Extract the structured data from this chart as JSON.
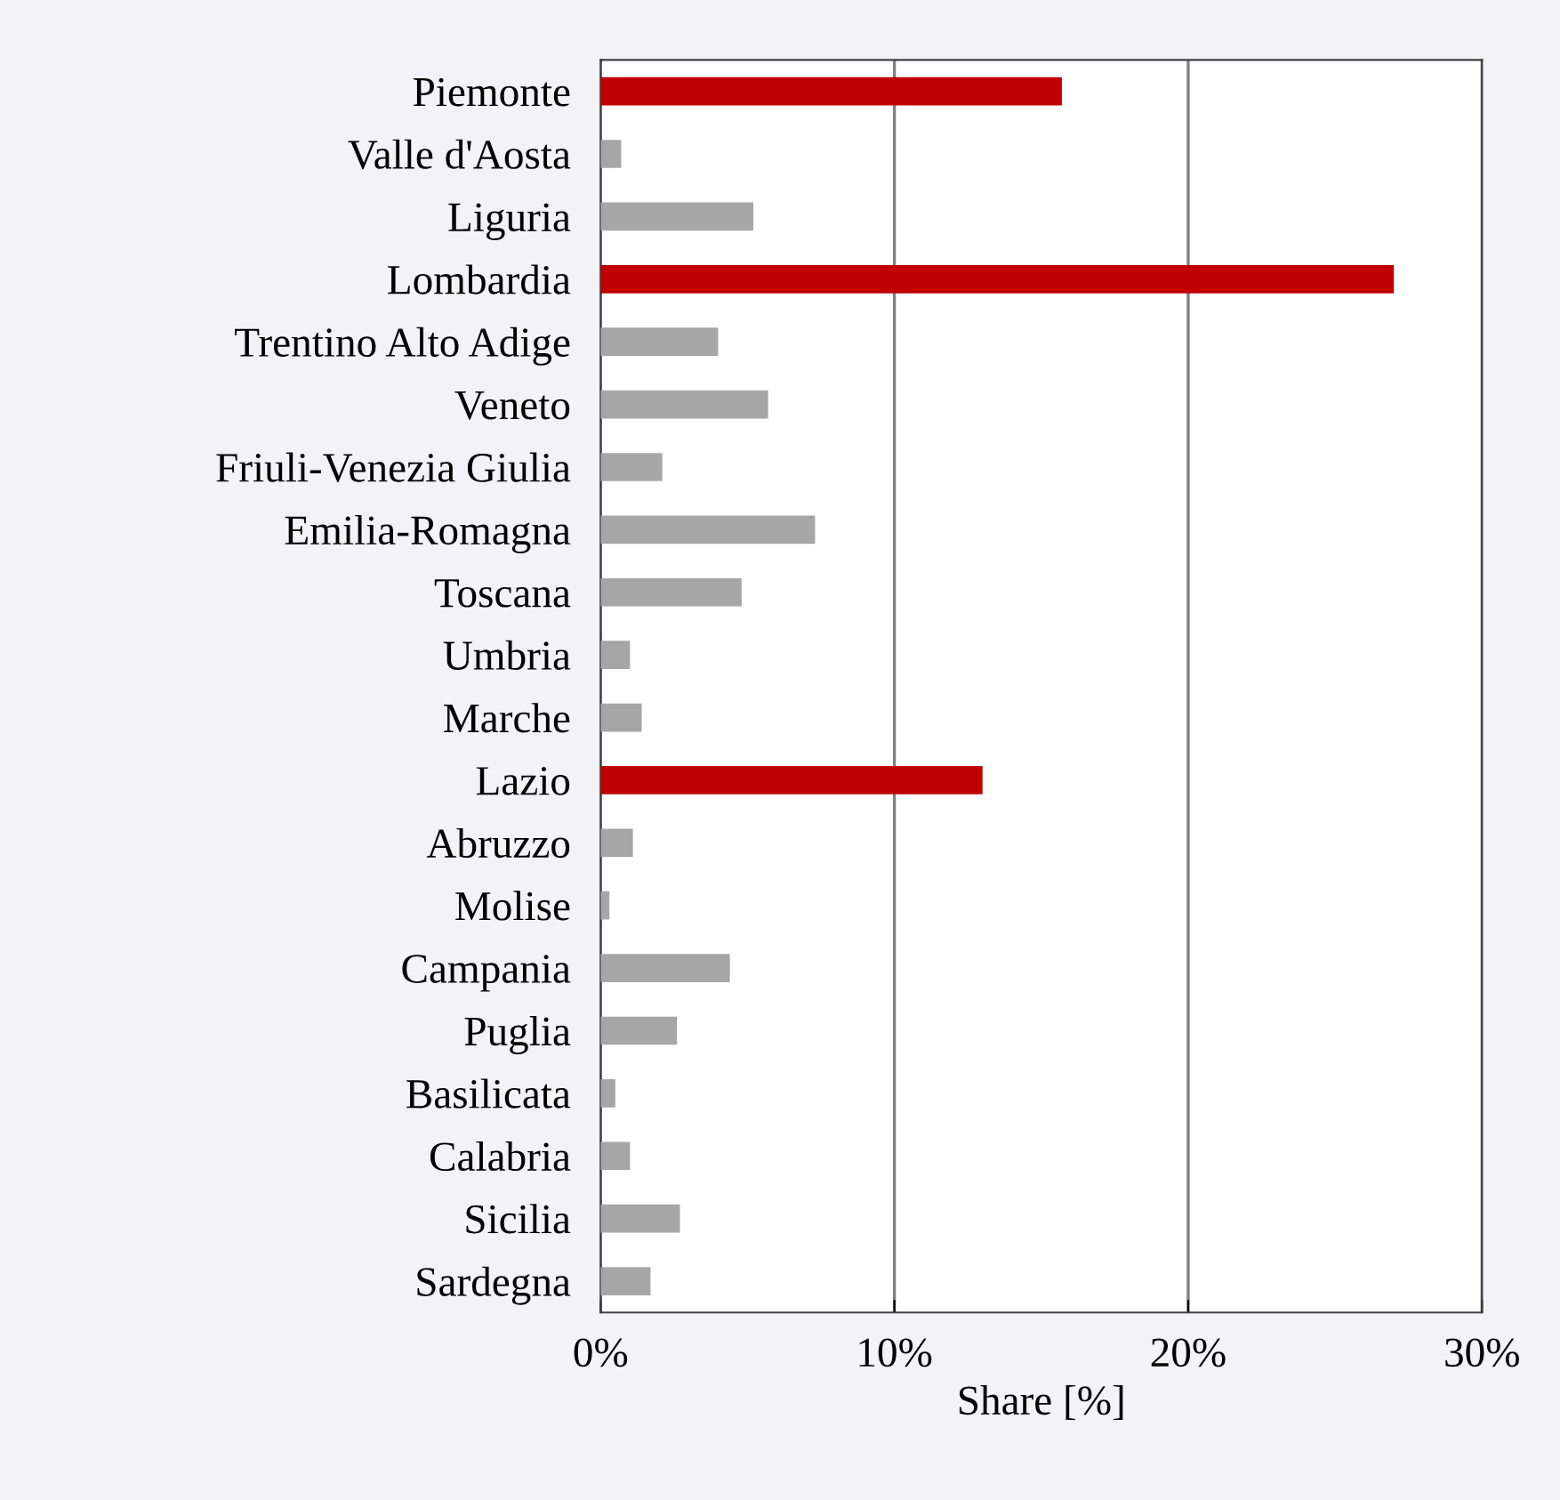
{
  "chart_data": {
    "type": "bar",
    "orientation": "horizontal",
    "xlabel": "Share [%]",
    "categories": [
      "Piemonte",
      "Valle d'Aosta",
      "Liguria",
      "Lombardia",
      "Trentino Alto Adige",
      "Veneto",
      "Friuli-Venezia Giulia",
      "Emilia-Romagna",
      "Toscana",
      "Umbria",
      "Marche",
      "Lazio",
      "Abruzzo",
      "Molise",
      "Campania",
      "Puglia",
      "Basilicata",
      "Calabria",
      "Sicilia",
      "Sardegna"
    ],
    "values": [
      15.7,
      0.7,
      5.2,
      27.0,
      4.0,
      5.7,
      2.1,
      7.3,
      4.8,
      1.0,
      1.4,
      13.0,
      1.1,
      0.3,
      4.4,
      2.6,
      0.5,
      1.0,
      2.7,
      1.7
    ],
    "colors": [
      "#c00000",
      "#a6a6a6",
      "#a6a6a6",
      "#c00000",
      "#a6a6a6",
      "#a6a6a6",
      "#a6a6a6",
      "#a6a6a6",
      "#a6a6a6",
      "#a6a6a6",
      "#a6a6a6",
      "#c00000",
      "#a6a6a6",
      "#a6a6a6",
      "#a6a6a6",
      "#a6a6a6",
      "#a6a6a6",
      "#a6a6a6",
      "#a6a6a6",
      "#a6a6a6"
    ],
    "xlim": [
      0,
      30
    ],
    "xticks": [
      {
        "value": 0,
        "label": "0%"
      },
      {
        "value": 10,
        "label": "10%"
      },
      {
        "value": 20,
        "label": "20%"
      },
      {
        "value": 30,
        "label": "30%"
      }
    ],
    "grid": "x"
  }
}
